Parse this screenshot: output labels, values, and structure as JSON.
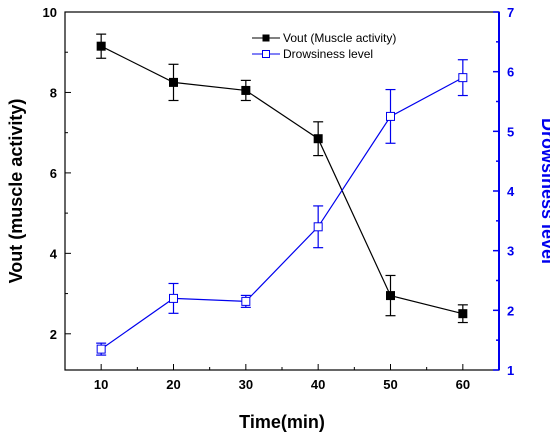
{
  "chart_data": {
    "type": "line",
    "x": [
      10,
      20,
      30,
      40,
      50,
      60
    ],
    "xlabel": "Time(min)",
    "xticks": [
      "10",
      "20",
      "30",
      "40",
      "50",
      "60"
    ],
    "xlim": [
      5,
      65
    ],
    "ylabel": "Vout (muscle activity)",
    "yticks": [
      "2",
      "4",
      "6",
      "8",
      "10"
    ],
    "ylim": [
      1.1,
      10
    ],
    "y2label": "Drowsiness level",
    "y2ticks": [
      "1",
      "2",
      "3",
      "4",
      "5",
      "6",
      "7"
    ],
    "y2lim": [
      1,
      7
    ],
    "legend_position": "top-center",
    "grid": false,
    "series": [
      {
        "name": "Vout (Muscle activity)",
        "axis": "left",
        "color": "#000000",
        "marker": "filled-square",
        "values": [
          9.15,
          8.25,
          8.05,
          6.85,
          2.95,
          2.5
        ],
        "errors": [
          0.3,
          0.45,
          0.25,
          0.42,
          0.5,
          0.22
        ]
      },
      {
        "name": "Drowsiness level",
        "axis": "right",
        "color": "#0000ee",
        "marker": "open-square",
        "values": [
          1.35,
          2.2,
          2.15,
          3.4,
          5.25,
          5.9
        ],
        "errors": [
          0.1,
          0.25,
          0.1,
          0.35,
          0.45,
          0.3
        ]
      }
    ]
  }
}
